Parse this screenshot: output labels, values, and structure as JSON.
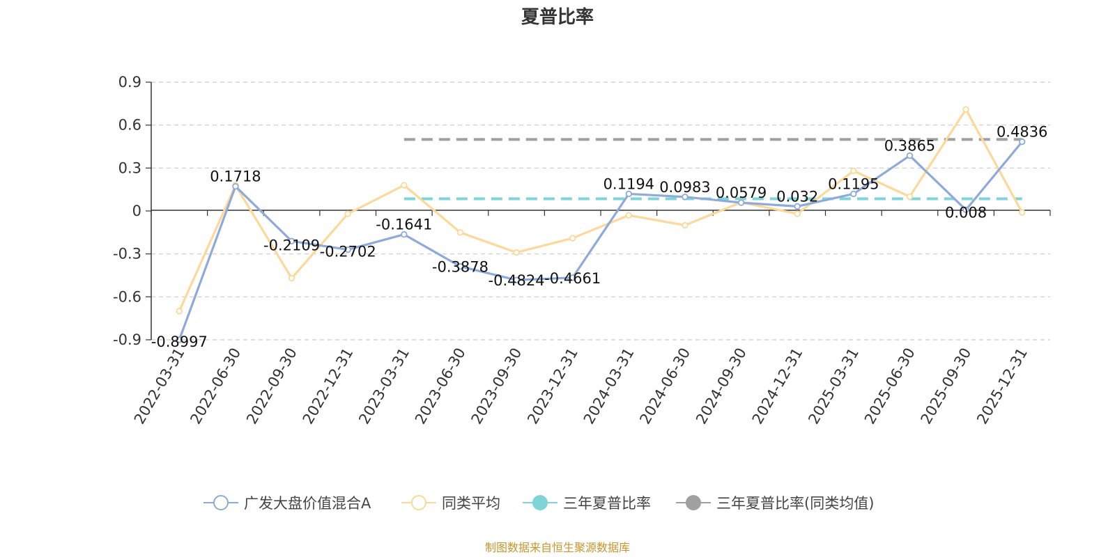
{
  "chart_data": {
    "type": "line",
    "title": "夏普比率",
    "categories": [
      "2022-03-31",
      "2022-06-30",
      "2022-09-30",
      "2022-12-31",
      "2023-03-31",
      "2023-06-30",
      "2023-09-30",
      "2023-12-31",
      "2024-03-31",
      "2024-06-30",
      "2024-09-30",
      "2024-12-31",
      "2025-03-31",
      "2025-06-30",
      "2025-09-30",
      "2025-12-31"
    ],
    "ylim": [
      -0.9,
      0.9
    ],
    "yticks": [
      0.9,
      0.6,
      0.3,
      0,
      -0.3,
      -0.6,
      -0.9
    ],
    "ytick_labels": [
      "0.9",
      "0.6",
      "0.3",
      "0",
      "-0.3",
      "-0.6",
      "-0.9"
    ],
    "grid": true,
    "legend_position": "bottom",
    "series": [
      {
        "name": "广发大盘价值混合A",
        "color": "#8eaadb",
        "values": [
          -0.8997,
          0.1718,
          -0.2109,
          -0.2702,
          -0.1641,
          -0.3878,
          -0.4824,
          -0.4661,
          0.1194,
          0.0983,
          0.0579,
          0.032,
          0.1195,
          0.3865,
          0.008,
          0.4836
        ],
        "labels": [
          "-0.8997",
          "0.1718",
          "-0.2109",
          "-0.2702",
          "-0.1641",
          "-0.3878",
          "-0.4824",
          "-0.4661",
          "0.1194",
          "0.0983",
          "0.0579",
          "0.032",
          "0.1195",
          "0.3865",
          "0.008",
          "0.4836"
        ]
      },
      {
        "name": "同类平均",
        "color": "#fcd899",
        "values": [
          -0.7,
          0.18,
          -0.47,
          -0.02,
          0.18,
          -0.15,
          -0.29,
          -0.19,
          -0.03,
          -0.1,
          0.06,
          -0.02,
          0.28,
          0.1,
          0.71,
          -0.01
        ]
      },
      {
        "name": "三年夏普比率",
        "color": "#7fd4d8",
        "dashed": true,
        "start_index": 4,
        "end_index": 15,
        "value": 0.085
      },
      {
        "name": "三年夏普比率(同类均值)",
        "color": "#a0a0a0",
        "dashed": true,
        "start_index": 4,
        "end_index": 15,
        "value": 0.5
      }
    ]
  },
  "source_note": "制图数据来自恒生聚源数据库"
}
